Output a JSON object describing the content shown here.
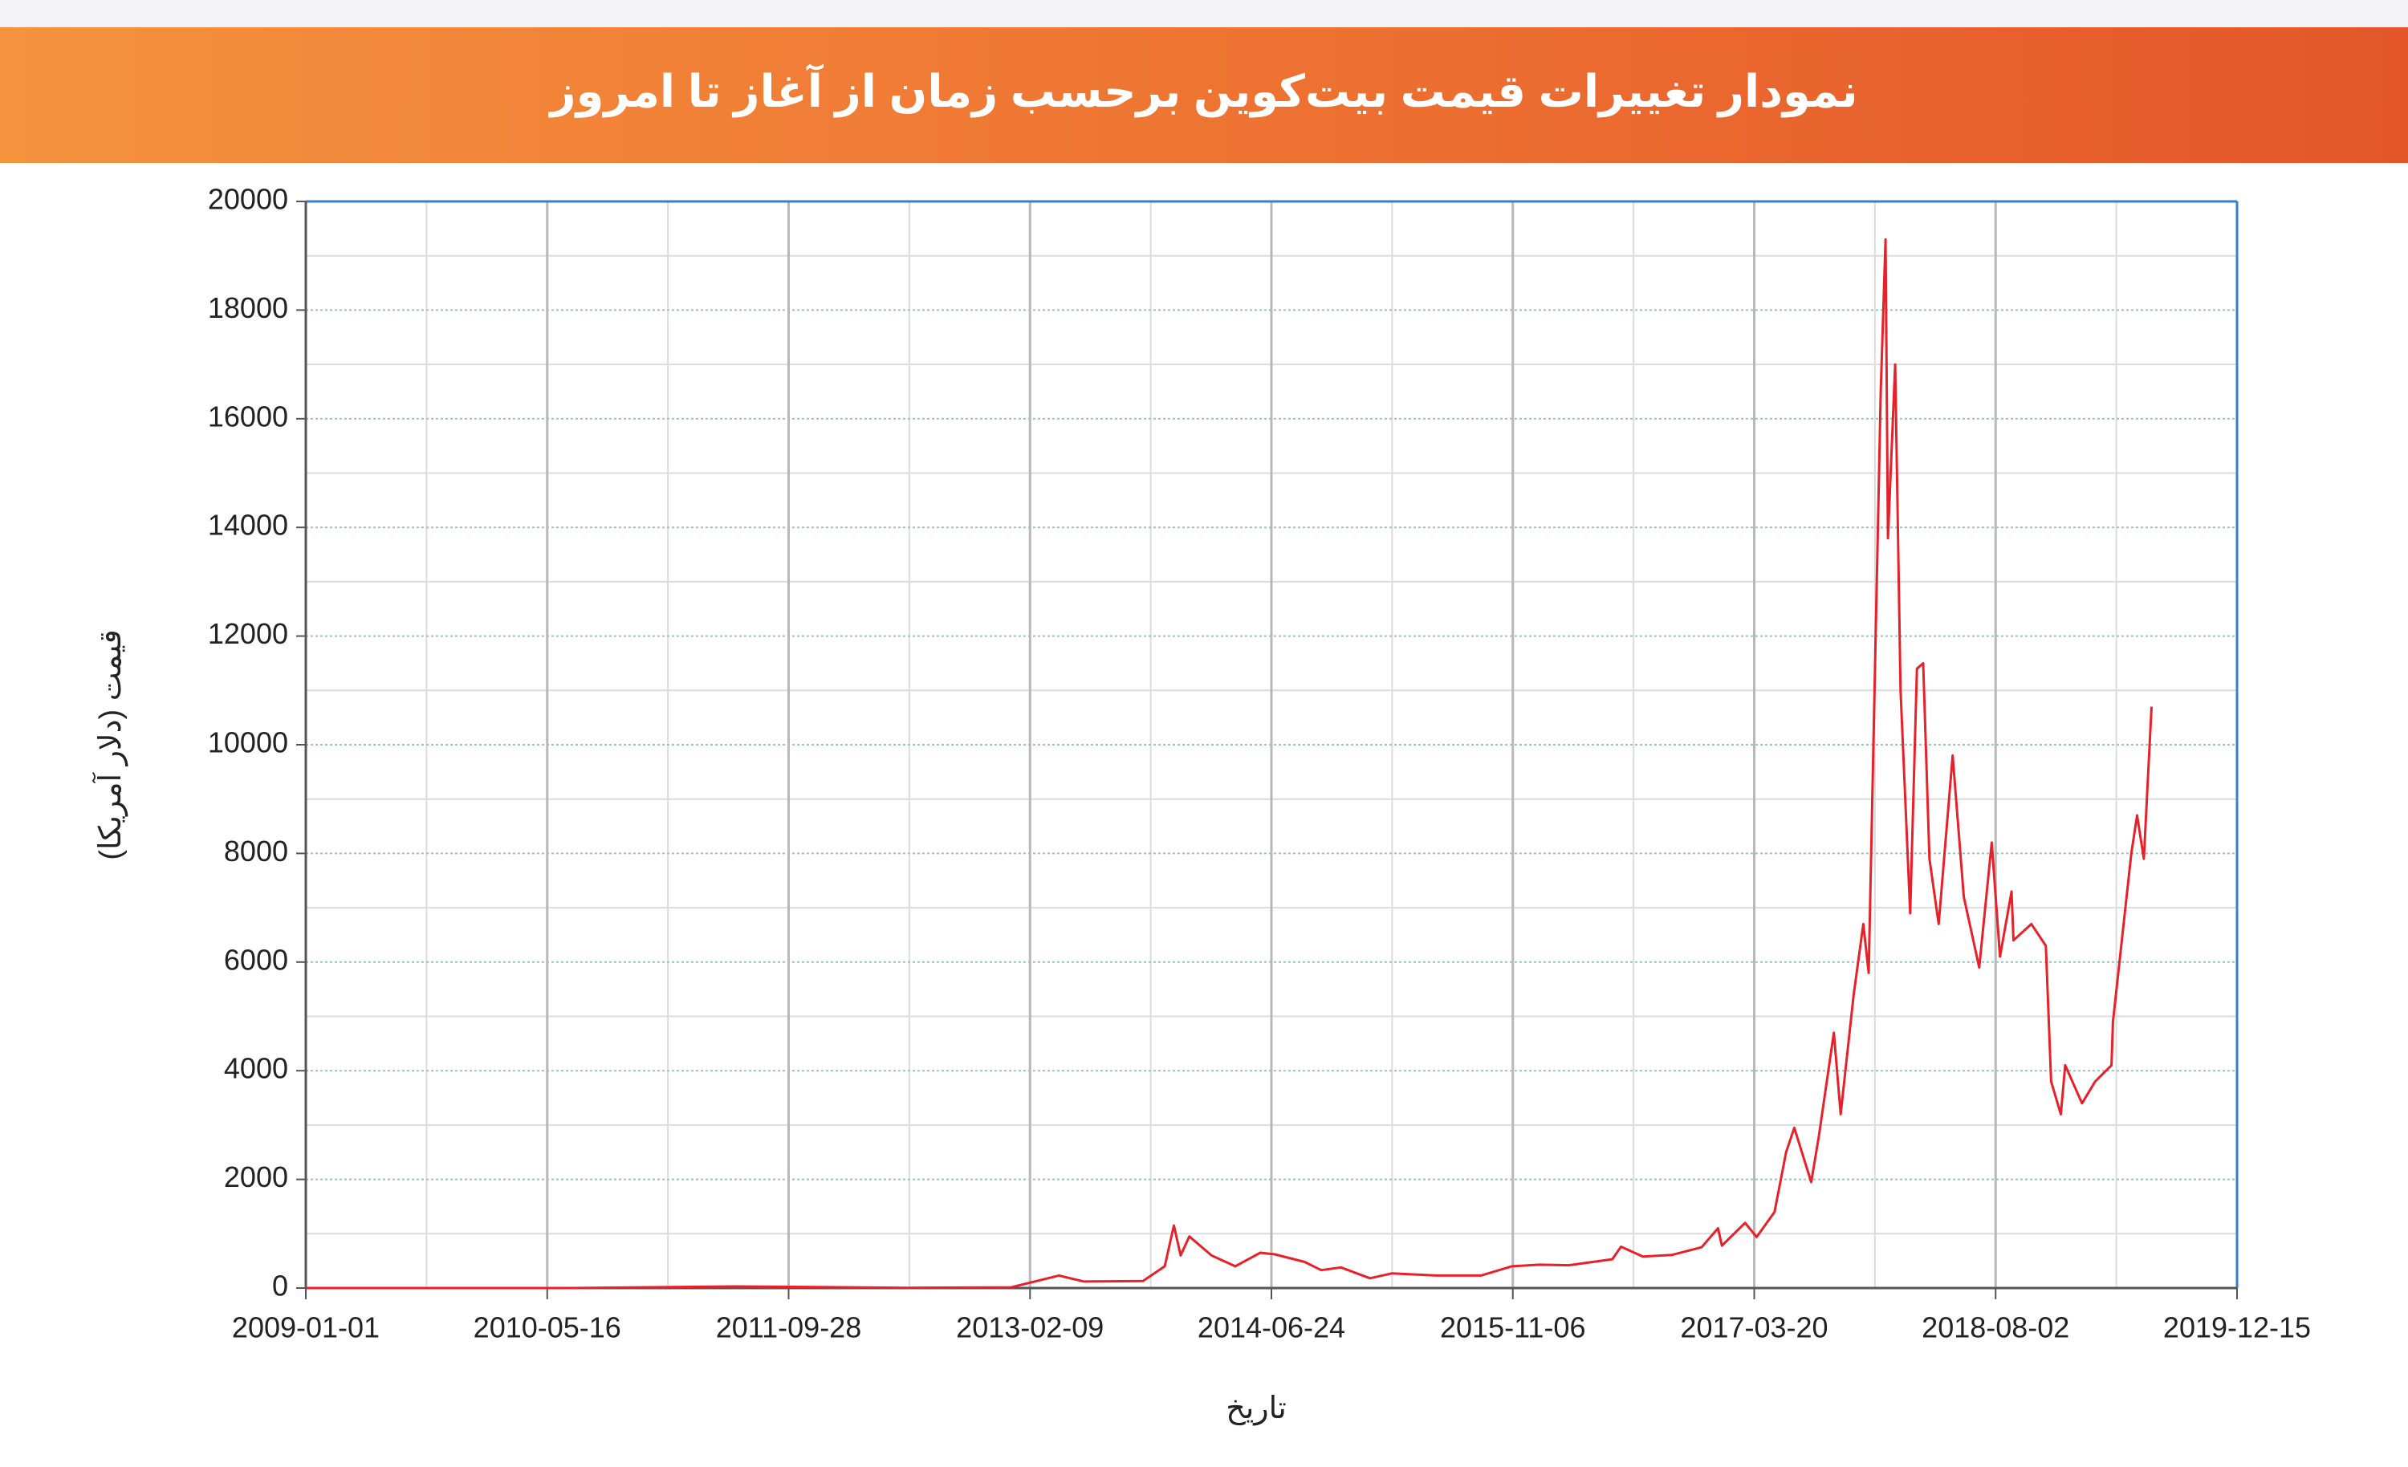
{
  "chart_data": {
    "type": "line",
    "title": "نمودار تغییرات قیمت بیت‌کوین برحسب زمان از آغاز تا امروز",
    "x_label": "تاریخ",
    "y_label": "قیمت (دلار آمریکا)",
    "color": "#e8202a",
    "grid": true,
    "x": [
      "2009-01-01",
      "2010-07-01",
      "2011-06-08",
      "2012-06-01",
      "2013-01-01",
      "2013-04-10",
      "2013-06-01",
      "2013-10-01",
      "2013-11-15",
      "2013-12-04",
      "2013-12-18",
      "2014-01-05",
      "2014-02-20",
      "2014-04-10",
      "2014-06-01",
      "2014-07-01",
      "2014-09-01",
      "2014-10-05",
      "2014-11-15",
      "2015-01-14",
      "2015-03-01",
      "2015-06-01",
      "2015-09-01",
      "2015-11-04",
      "2016-01-01",
      "2016-03-01",
      "2016-05-30",
      "2016-06-17",
      "2016-08-01",
      "2016-10-01",
      "2016-12-01",
      "2017-01-04",
      "2017-01-12",
      "2017-03-01",
      "2017-03-25",
      "2017-05-01",
      "2017-05-25",
      "2017-06-11",
      "2017-07-16",
      "2017-08-01",
      "2017-09-01",
      "2017-09-15",
      "2017-10-12",
      "2017-11-01",
      "2017-11-12",
      "2017-12-07",
      "2017-12-17",
      "2017-12-22",
      "2018-01-06",
      "2018-01-17",
      "2018-02-06",
      "2018-02-20",
      "2018-03-05",
      "2018-03-18",
      "2018-04-06",
      "2018-05-05",
      "2018-05-28",
      "2018-06-29",
      "2018-07-25",
      "2018-08-11",
      "2018-09-04",
      "2018-09-08",
      "2018-10-15",
      "2018-11-14",
      "2018-11-25",
      "2018-12-15",
      "2018-12-24",
      "2019-01-28",
      "2019-02-24",
      "2019-03-30",
      "2019-04-02",
      "2019-05-10",
      "2019-05-22",
      "2019-06-05",
      "2019-06-21"
    ],
    "values": [
      0,
      0.1,
      30,
      5,
      13,
      230,
      120,
      130,
      400,
      1150,
      600,
      950,
      600,
      400,
      650,
      620,
      480,
      330,
      380,
      180,
      270,
      230,
      230,
      400,
      430,
      420,
      530,
      760,
      580,
      610,
      750,
      1100,
      780,
      1200,
      940,
      1400,
      2500,
      2950,
      1950,
      2800,
      4700,
      3200,
      5400,
      6700,
      5800,
      16500,
      19300,
      13800,
      17000,
      11000,
      6900,
      11400,
      11500,
      7900,
      6700,
      9800,
      7200,
      5900,
      8200,
      6100,
      7300,
      6400,
      6700,
      6300,
      3800,
      3200,
      4100,
      3400,
      3800,
      4100,
      4900,
      8000,
      8700,
      7900,
      10700
    ],
    "xlim": [
      "2009-01-01",
      "2019-12-15"
    ],
    "xticks": [
      "2009-01-01",
      "2010-05-16",
      "2011-09-28",
      "2013-02-09",
      "2014-06-24",
      "2015-11-06",
      "2017-03-20",
      "2018-08-02",
      "2019-12-15"
    ],
    "ylim": [
      0,
      20000
    ],
    "yticks": [
      0,
      2000,
      4000,
      6000,
      8000,
      10000,
      12000,
      14000,
      16000,
      18000,
      20000
    ]
  }
}
